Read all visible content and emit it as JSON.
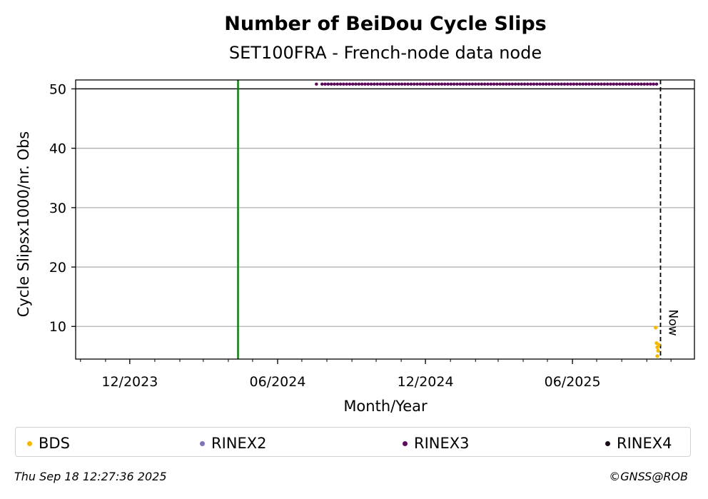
{
  "chart_data": {
    "type": "scatter",
    "title": "Number of BeiDou Cycle Slips",
    "subtitle": "SET100FRA - French-node data node",
    "xlabel": "Month/Year",
    "ylabel": "Cycle Slipsx1000/nr. Obs",
    "x_tick_labels": [
      "12/2023",
      "06/2024",
      "12/2024",
      "06/2025"
    ],
    "x_ticks": [
      "2023-12-01",
      "2024-06-01",
      "2024-12-01",
      "2025-06-01"
    ],
    "xlim": [
      "2023-09-25",
      "2025-10-30"
    ],
    "ylim": [
      4.5,
      51.5
    ],
    "y_ticks": [
      10,
      20,
      30,
      40,
      50
    ],
    "grid": "y",
    "hline": 50,
    "vline_green_date": "2024-04-13",
    "now_date": "2025-09-18",
    "now_label": "Now",
    "series": [
      {
        "name": "BDS",
        "color": "#f5b700",
        "points": [
          [
            "2025-09-12",
            9.8
          ],
          [
            "2025-09-13",
            7.2
          ],
          [
            "2025-09-14",
            6.5
          ],
          [
            "2025-09-15",
            5.9
          ],
          [
            "2025-09-16",
            6.9
          ],
          [
            "2025-09-14",
            5.0
          ]
        ]
      },
      {
        "name": "RINEX2",
        "color": "#7d73b8",
        "points": []
      },
      {
        "name": "RINEX3",
        "color": "#5c0b5c",
        "value": 50.8,
        "range1": [
          "2024-07-19",
          "2024-07-22"
        ],
        "range2": [
          "2024-07-26",
          "2025-09-16"
        ]
      },
      {
        "name": "RINEX4",
        "color": "#1a0a1a",
        "points": []
      }
    ],
    "legend_placement": "bottom"
  },
  "footer": {
    "timestamp": "Thu Sep 18 12:27:36 2025",
    "credit": "©GNSS@ROB"
  }
}
